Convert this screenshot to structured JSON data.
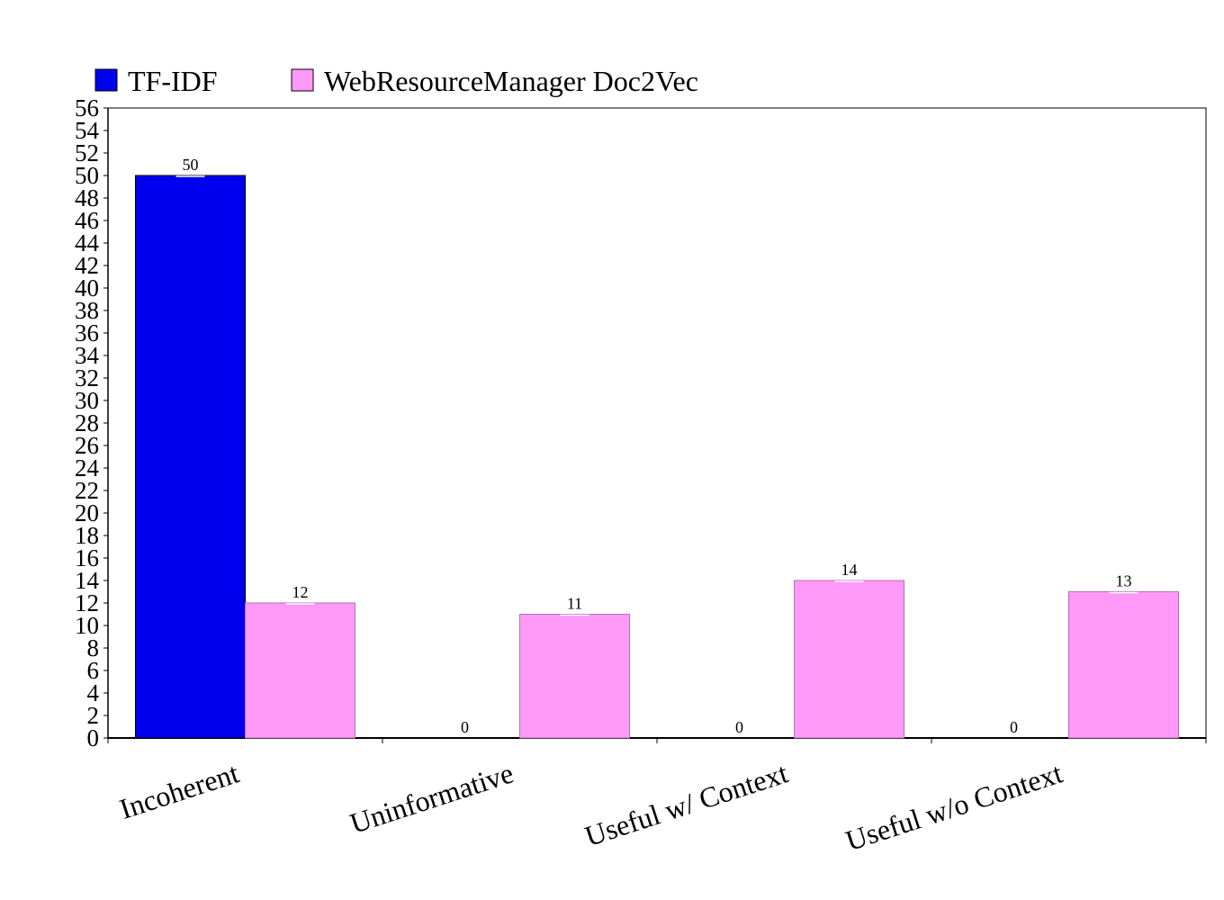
{
  "chart_data": {
    "type": "bar",
    "title": "",
    "xlabel": "",
    "ylabel": "",
    "categories": [
      "Incoherent",
      "Uninformative",
      "Useful w/ Context",
      "Useful w/o Context"
    ],
    "series": [
      {
        "name": "TF-IDF",
        "values": [
          50,
          0,
          0,
          0
        ],
        "color": "#0000ee"
      },
      {
        "name": "WebResourceManager Doc2Vec",
        "values": [
          12,
          11,
          14,
          13
        ],
        "color": "#ff99f8"
      }
    ],
    "ylim": [
      0,
      56
    ],
    "yticks": [
      "0",
      "2",
      "4",
      "6",
      "8",
      "10",
      "12",
      "14",
      "16",
      "18",
      "20",
      "22",
      "24",
      "26",
      "28",
      "30",
      "32",
      "34",
      "36",
      "38",
      "40",
      "42",
      "44",
      "46",
      "48",
      "50",
      "52",
      "54",
      "56"
    ],
    "grid": false,
    "legend_position": "top-left",
    "data_labels": true
  }
}
